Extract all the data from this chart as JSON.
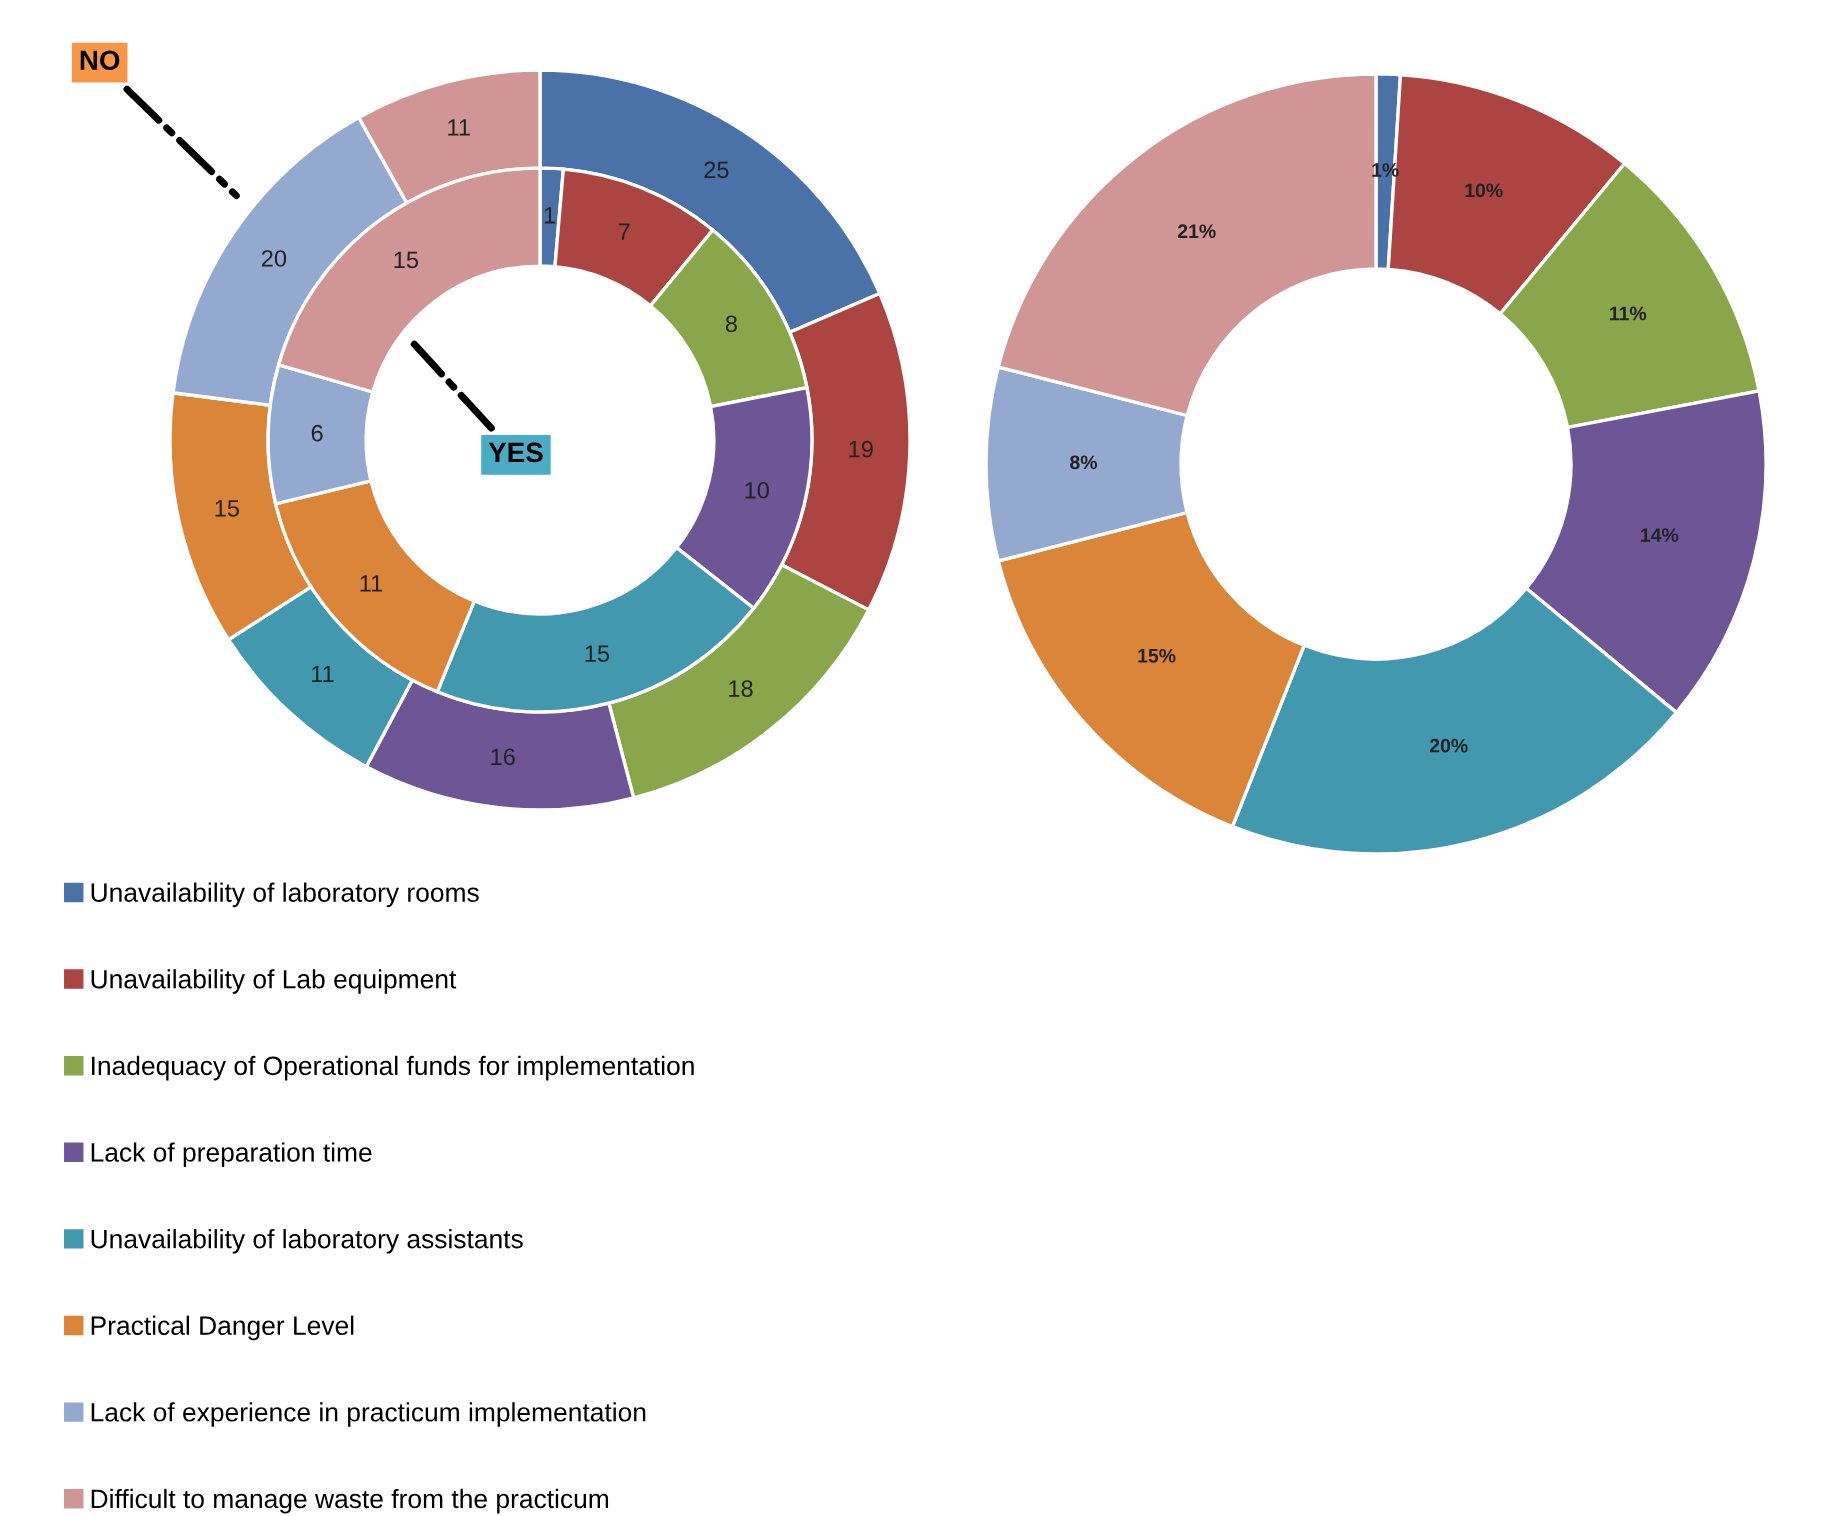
{
  "chart_data": [
    {
      "type": "donut",
      "categories": [
        "Unavailability of laboratory rooms",
        "Unavailability of Lab equipment",
        "Inadequacy of Operational funds for implementation",
        "Lack of preparation time",
        "Unavailability of laboratory assistants",
        "Practical Danger Level",
        "Lack of experience in practicum implementation",
        "Difficult to manage waste from the practicum"
      ],
      "colors": [
        "#4a72a8",
        "#ac4542",
        "#8aa64b",
        "#6e5596",
        "#4198af",
        "#da8538",
        "#93a9d0",
        "#d09594"
      ],
      "series": [
        {
          "name": "NO",
          "values": [
            25,
            19,
            18,
            16,
            11,
            15,
            20,
            11
          ]
        },
        {
          "name": "YES",
          "values": [
            1,
            7,
            8,
            10,
            15,
            11,
            6,
            15
          ]
        }
      ],
      "data_labels": true,
      "legend": "bottom"
    },
    {
      "type": "donut",
      "categories": [
        null,
        null,
        null,
        null,
        null,
        null,
        null,
        null
      ],
      "colors": [
        "#4a72a8",
        "#ac4542",
        "#8aa64b",
        "#6e5596",
        "#4198af",
        "#da8538",
        "#93a9d0",
        "#d09594"
      ],
      "values": [
        1,
        10,
        11,
        14,
        20,
        15,
        8,
        21
      ],
      "value_labels": [
        "1%",
        "10%",
        "11%",
        "14%",
        "20%",
        "15%",
        "8%",
        "21%"
      ]
    }
  ]
}
